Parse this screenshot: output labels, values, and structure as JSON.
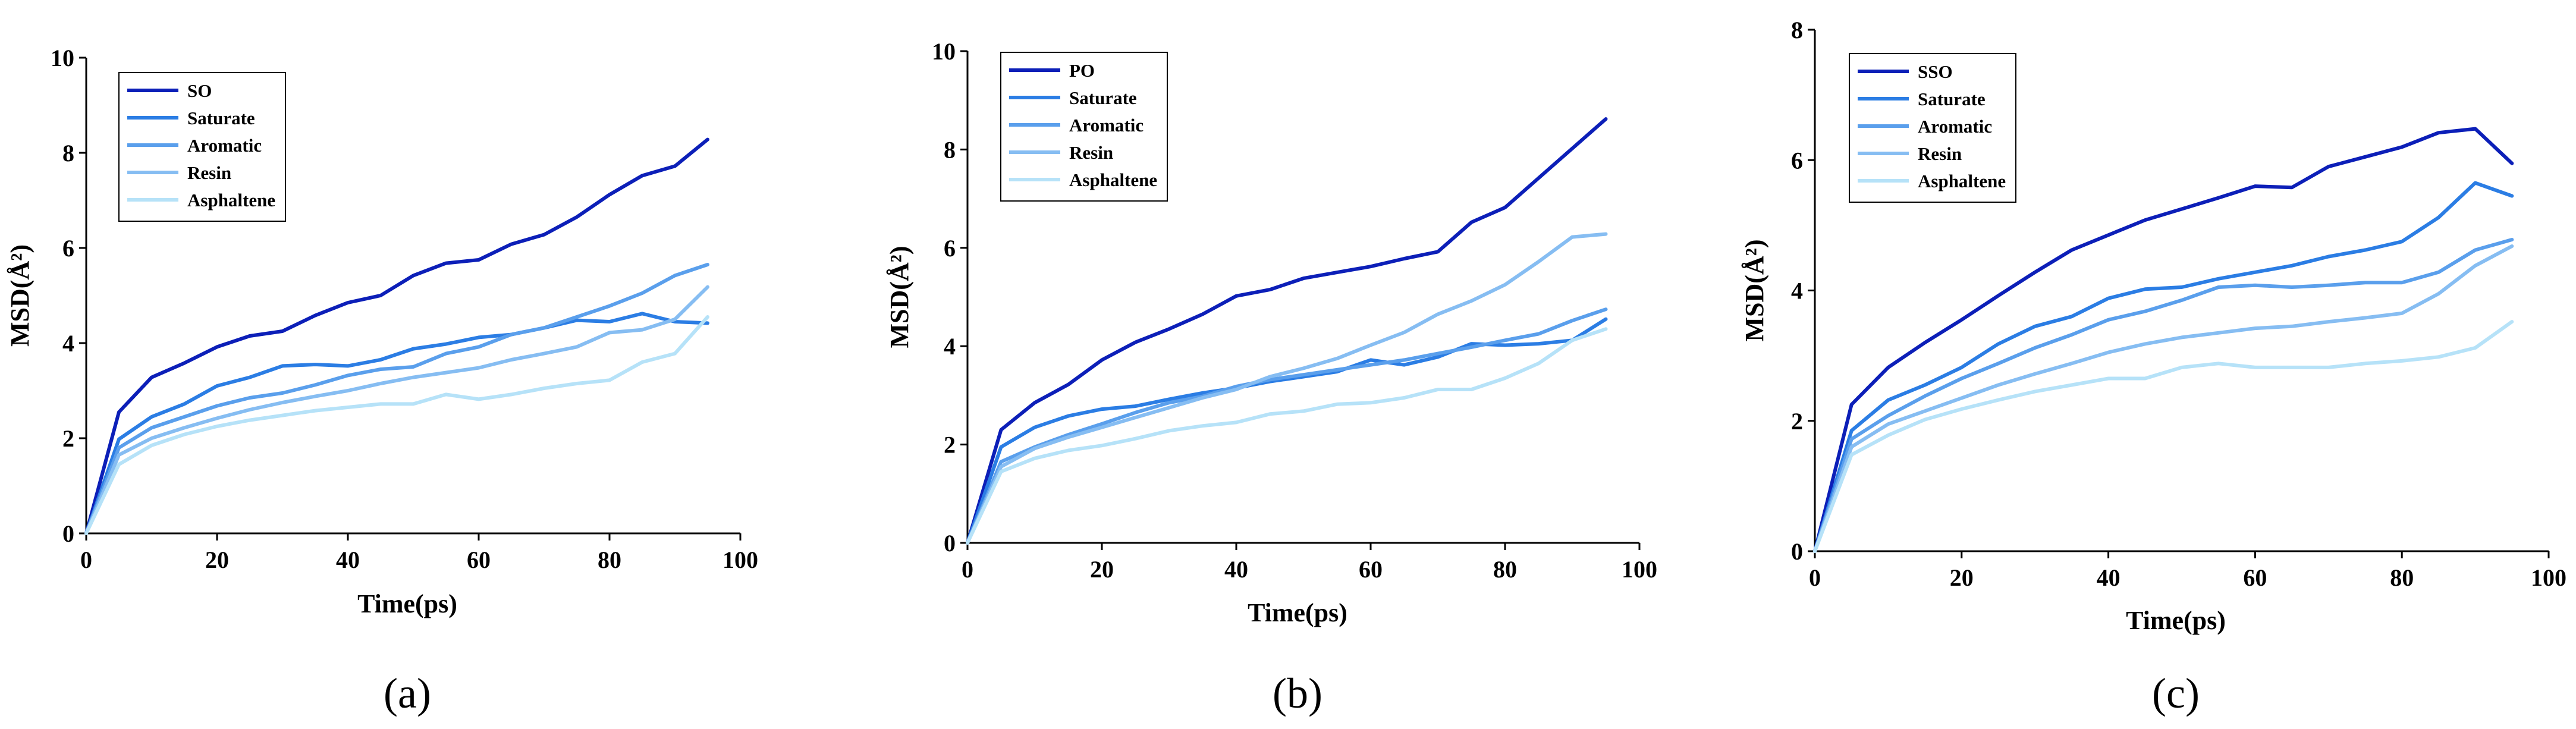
{
  "chart_data": [
    {
      "type": "line",
      "panel_label": "(a)",
      "xlabel": "Time(ps)",
      "ylabel": "MSD(Å²)",
      "xlim": [
        0,
        100
      ],
      "ylim": [
        0,
        10
      ],
      "xticks": [
        0,
        20,
        40,
        60,
        80,
        100
      ],
      "yticks": [
        0,
        2,
        4,
        6,
        8,
        10
      ],
      "legend_position": "top-left",
      "x": [
        0,
        5,
        10,
        15,
        20,
        25,
        30,
        35,
        40,
        45,
        50,
        55,
        60,
        65,
        70,
        75,
        80,
        85,
        90,
        95
      ],
      "series": [
        {
          "name": "SO",
          "color": "#0c1fb8",
          "values": [
            0,
            2.55,
            3.28,
            3.58,
            3.92,
            4.15,
            4.25,
            4.58,
            4.85,
            5.0,
            5.42,
            5.68,
            5.75,
            6.08,
            6.28,
            6.65,
            7.12,
            7.52,
            7.72,
            8.28
          ]
        },
        {
          "name": "Saturate",
          "color": "#2b7de4",
          "values": [
            0,
            1.98,
            2.45,
            2.72,
            3.1,
            3.28,
            3.52,
            3.55,
            3.52,
            3.65,
            3.88,
            3.98,
            4.12,
            4.18,
            4.32,
            4.48,
            4.45,
            4.62,
            4.45,
            4.42
          ]
        },
        {
          "name": "Aromatic",
          "color": "#5a9fec",
          "values": [
            0,
            1.8,
            2.22,
            2.45,
            2.68,
            2.85,
            2.95,
            3.12,
            3.32,
            3.45,
            3.5,
            3.78,
            3.92,
            4.18,
            4.32,
            4.55,
            4.78,
            5.05,
            5.42,
            5.65
          ]
        },
        {
          "name": "Resin",
          "color": "#86bdf2",
          "values": [
            0,
            1.65,
            2.0,
            2.22,
            2.42,
            2.6,
            2.75,
            2.88,
            3.0,
            3.15,
            3.28,
            3.38,
            3.48,
            3.65,
            3.78,
            3.92,
            4.22,
            4.28,
            4.5,
            5.18
          ]
        },
        {
          "name": "Asphaltene",
          "color": "#b6e2f8",
          "values": [
            0,
            1.45,
            1.85,
            2.08,
            2.25,
            2.38,
            2.48,
            2.58,
            2.65,
            2.72,
            2.72,
            2.92,
            2.82,
            2.92,
            3.05,
            3.15,
            3.22,
            3.6,
            3.78,
            4.55
          ]
        }
      ]
    },
    {
      "type": "line",
      "panel_label": "(b)",
      "xlabel": "Time(ps)",
      "ylabel": "MSD(Å²)",
      "xlim": [
        0,
        100
      ],
      "ylim": [
        0,
        10
      ],
      "xticks": [
        0,
        20,
        40,
        60,
        80,
        100
      ],
      "yticks": [
        0,
        2,
        4,
        6,
        8,
        10
      ],
      "legend_position": "top-left",
      "x": [
        0,
        5,
        10,
        15,
        20,
        25,
        30,
        35,
        40,
        45,
        50,
        55,
        60,
        65,
        70,
        75,
        80,
        85,
        90,
        95
      ],
      "series": [
        {
          "name": "PO",
          "color": "#0c1fb8",
          "values": [
            0,
            2.3,
            2.85,
            3.22,
            3.72,
            4.08,
            4.35,
            4.65,
            5.02,
            5.15,
            5.38,
            5.5,
            5.62,
            5.78,
            5.92,
            6.52,
            6.82,
            7.42,
            8.02,
            8.62
          ]
        },
        {
          "name": "Saturate",
          "color": "#2b7de4",
          "values": [
            0,
            1.95,
            2.35,
            2.58,
            2.72,
            2.78,
            2.92,
            3.05,
            3.15,
            3.28,
            3.38,
            3.48,
            3.72,
            3.62,
            3.78,
            4.05,
            4.02,
            4.05,
            4.12,
            4.55
          ]
        },
        {
          "name": "Aromatic",
          "color": "#5a9fec",
          "values": [
            0,
            1.65,
            1.95,
            2.2,
            2.42,
            2.65,
            2.85,
            2.98,
            3.18,
            3.32,
            3.42,
            3.52,
            3.62,
            3.72,
            3.85,
            3.98,
            4.12,
            4.25,
            4.52,
            4.75
          ]
        },
        {
          "name": "Resin",
          "color": "#86bdf2",
          "values": [
            0,
            1.55,
            1.92,
            2.15,
            2.35,
            2.55,
            2.75,
            2.95,
            3.12,
            3.38,
            3.55,
            3.75,
            4.02,
            4.28,
            4.65,
            4.92,
            5.25,
            5.72,
            6.22,
            6.28
          ]
        },
        {
          "name": "Asphaltene",
          "color": "#b6e2f8",
          "values": [
            0,
            1.45,
            1.72,
            1.88,
            1.98,
            2.12,
            2.28,
            2.38,
            2.45,
            2.62,
            2.68,
            2.82,
            2.85,
            2.95,
            3.12,
            3.12,
            3.35,
            3.65,
            4.12,
            4.35
          ]
        }
      ]
    },
    {
      "type": "line",
      "panel_label": "(c)",
      "xlabel": "Time(ps)",
      "ylabel": "MSD(Å²)",
      "xlim": [
        0,
        100
      ],
      "ylim": [
        0,
        8
      ],
      "xticks": [
        0,
        20,
        40,
        60,
        80,
        100
      ],
      "yticks": [
        0,
        2,
        4,
        6,
        8
      ],
      "legend_position": "top-left",
      "x": [
        0,
        5,
        10,
        15,
        20,
        25,
        30,
        35,
        40,
        45,
        50,
        55,
        60,
        65,
        70,
        75,
        80,
        85,
        90,
        95
      ],
      "series": [
        {
          "name": "SSO",
          "color": "#0c1fb8",
          "values": [
            0,
            2.25,
            2.82,
            3.2,
            3.55,
            3.92,
            4.28,
            4.62,
            4.85,
            5.08,
            5.25,
            5.42,
            5.6,
            5.58,
            5.9,
            6.05,
            6.2,
            6.42,
            6.48,
            5.95
          ]
        },
        {
          "name": "Saturate",
          "color": "#2b7de4",
          "values": [
            0,
            1.85,
            2.32,
            2.55,
            2.82,
            3.18,
            3.45,
            3.6,
            3.88,
            4.02,
            4.05,
            4.18,
            4.28,
            4.38,
            4.52,
            4.62,
            4.75,
            5.12,
            5.65,
            5.45
          ]
        },
        {
          "name": "Aromatic",
          "color": "#5a9fec",
          "values": [
            0,
            1.72,
            2.08,
            2.38,
            2.65,
            2.88,
            3.12,
            3.32,
            3.55,
            3.68,
            3.85,
            4.05,
            4.08,
            4.05,
            4.08,
            4.12,
            4.12,
            4.28,
            4.62,
            4.78
          ]
        },
        {
          "name": "Resin",
          "color": "#86bdf2",
          "values": [
            0,
            1.6,
            1.95,
            2.15,
            2.35,
            2.55,
            2.72,
            2.88,
            3.05,
            3.18,
            3.28,
            3.35,
            3.42,
            3.45,
            3.52,
            3.58,
            3.65,
            3.95,
            4.38,
            4.68
          ]
        },
        {
          "name": "Asphaltene",
          "color": "#b6e2f8",
          "values": [
            0,
            1.48,
            1.78,
            2.02,
            2.18,
            2.32,
            2.45,
            2.55,
            2.65,
            2.65,
            2.82,
            2.88,
            2.82,
            2.82,
            2.82,
            2.88,
            2.92,
            2.98,
            3.12,
            3.52
          ]
        }
      ]
    }
  ]
}
